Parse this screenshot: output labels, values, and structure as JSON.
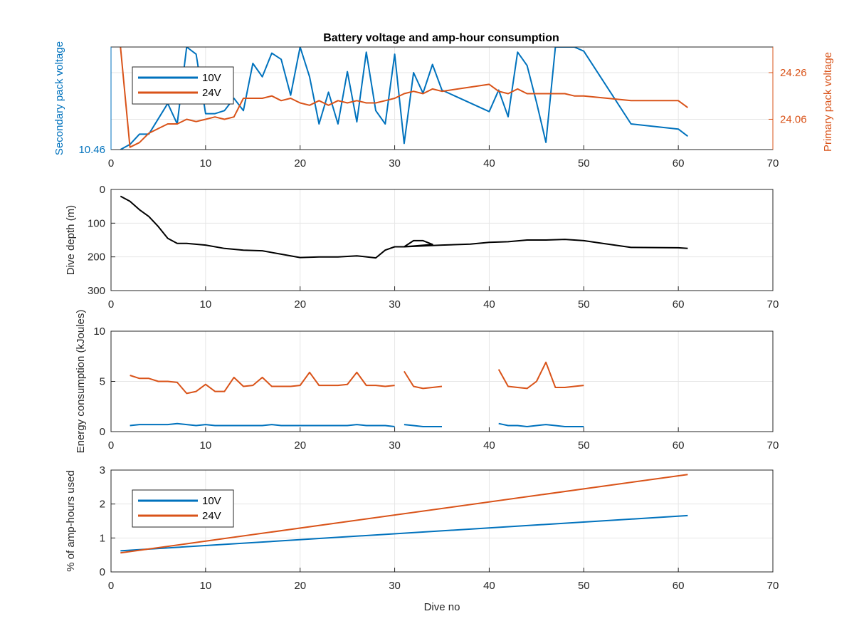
{
  "figure": {
    "title": "Battery voltage and amp-hour consumption",
    "colors": {
      "blue": "#0072bd",
      "orange": "#d95319",
      "black": "#000000",
      "grid": "#e6e6e6",
      "axis": "#262626"
    }
  },
  "chart_data": [
    {
      "type": "line",
      "title": "Battery voltage and amp-hour consumption",
      "xlabel": "",
      "ylabel": "Secondary pack voltage",
      "ylabel_right": "Primary pack voltage",
      "xlim": [
        0,
        70
      ],
      "xticks": [
        0,
        10,
        20,
        30,
        40,
        50,
        60,
        70
      ],
      "ylim": [
        10.46,
        10.56
      ],
      "yticks": [
        10.46
      ],
      "ytick_labels": [
        "10.46"
      ],
      "ylim_right": [
        23.93,
        24.37
      ],
      "yticks_right": [
        24.06,
        24.26
      ],
      "ytick_labels_right": [
        "24.06",
        "24.26"
      ],
      "grid": true,
      "legend": "top-left",
      "series": [
        {
          "name": "10V",
          "axis": "left",
          "x": [
            1,
            2,
            3,
            4,
            5,
            6,
            7,
            8,
            9,
            10,
            11,
            12,
            13,
            14,
            15,
            16,
            17,
            18,
            19,
            20,
            21,
            22,
            23,
            24,
            25,
            26,
            27,
            28,
            29,
            30,
            31,
            32,
            33,
            34,
            35,
            40,
            41,
            42,
            43,
            44,
            45,
            46,
            47,
            48,
            49,
            50,
            55,
            60,
            61
          ],
          "values": [
            10.46,
            10.465,
            10.475,
            10.475,
            10.49,
            10.505,
            10.485,
            10.56,
            10.553,
            10.495,
            10.495,
            10.498,
            10.51,
            10.498,
            10.544,
            10.531,
            10.554,
            10.548,
            10.513,
            10.56,
            10.531,
            10.485,
            10.516,
            10.485,
            10.536,
            10.487,
            10.555,
            10.498,
            10.485,
            10.553,
            10.466,
            10.535,
            10.515,
            10.543,
            10.518,
            10.497,
            10.518,
            10.492,
            10.555,
            10.542,
            10.506,
            10.467,
            10.56,
            10.56,
            10.56,
            10.556,
            10.485,
            10.48,
            10.473
          ]
        },
        {
          "name": "24V",
          "axis": "right",
          "x": [
            1,
            2,
            3,
            4,
            5,
            6,
            7,
            8,
            9,
            10,
            11,
            12,
            13,
            14,
            15,
            16,
            17,
            18,
            19,
            20,
            21,
            22,
            23,
            24,
            25,
            26,
            27,
            28,
            29,
            30,
            31,
            32,
            33,
            34,
            35,
            40,
            41,
            42,
            43,
            44,
            45,
            46,
            47,
            48,
            49,
            50,
            55,
            60,
            61
          ],
          "values": [
            24.37,
            23.94,
            23.96,
            24.0,
            24.02,
            24.04,
            24.04,
            24.06,
            24.05,
            24.06,
            24.07,
            24.06,
            24.07,
            24.15,
            24.15,
            24.15,
            24.16,
            24.14,
            24.15,
            24.13,
            24.12,
            24.14,
            24.12,
            24.14,
            24.13,
            24.14,
            24.13,
            24.13,
            24.14,
            24.15,
            24.17,
            24.18,
            24.17,
            24.19,
            24.18,
            24.21,
            24.18,
            24.17,
            24.19,
            24.17,
            24.17,
            24.17,
            24.17,
            24.17,
            24.16,
            24.16,
            24.14,
            24.14,
            24.11
          ]
        }
      ]
    },
    {
      "type": "line",
      "xlabel": "",
      "ylabel": "Dive depth (m)",
      "xlim": [
        0,
        70
      ],
      "xticks": [
        0,
        10,
        20,
        30,
        40,
        50,
        60,
        70
      ],
      "ylim": [
        0,
        300
      ],
      "yreverse": true,
      "yticks": [
        0,
        100,
        200,
        300
      ],
      "grid": true,
      "series": [
        {
          "name": "",
          "x": [
            1,
            2,
            3,
            4,
            5,
            6,
            7,
            8,
            10,
            12,
            14,
            16,
            18,
            20,
            22,
            24,
            26,
            28,
            29,
            30,
            31,
            32,
            33,
            34,
            31,
            35,
            38,
            40,
            42,
            44,
            46,
            48,
            50,
            52,
            55,
            60,
            61
          ],
          "values": [
            20,
            35,
            60,
            80,
            110,
            145,
            160,
            160,
            165,
            175,
            180,
            182,
            192,
            202,
            200,
            200,
            197,
            203,
            180,
            170,
            170,
            152,
            152,
            163,
            170,
            165,
            162,
            157,
            155,
            150,
            150,
            148,
            152,
            160,
            172,
            173,
            175
          ]
        }
      ]
    },
    {
      "type": "line",
      "xlabel": "",
      "ylabel": "Energy consumption (kJoules)",
      "xlim": [
        0,
        70
      ],
      "xticks": [
        0,
        10,
        20,
        30,
        40,
        50,
        60,
        70
      ],
      "ylim": [
        0,
        10
      ],
      "yticks": [
        0,
        5,
        10
      ],
      "grid": true,
      "series": [
        {
          "name": "",
          "color": "orange",
          "x": [
            2,
            3,
            4,
            5,
            6,
            7,
            8,
            9,
            10,
            11,
            12,
            13,
            14,
            15,
            16,
            17,
            18,
            19,
            20,
            21,
            22,
            23,
            24,
            25,
            26,
            27,
            28,
            29,
            30,
            null,
            31,
            32,
            33,
            34,
            35,
            null,
            41,
            42,
            43,
            44,
            45,
            46,
            47,
            48,
            49,
            50
          ],
          "values": [
            5.6,
            5.3,
            5.3,
            5.0,
            5.0,
            4.9,
            3.8,
            4.0,
            4.7,
            4.0,
            4.0,
            5.4,
            4.5,
            4.6,
            5.4,
            4.5,
            4.5,
            4.5,
            4.6,
            5.9,
            4.6,
            4.6,
            4.6,
            4.7,
            5.9,
            4.6,
            4.6,
            4.5,
            4.6,
            null,
            6.0,
            4.5,
            4.3,
            4.4,
            4.5,
            null,
            6.2,
            4.5,
            4.4,
            4.3,
            5.0,
            6.9,
            4.4,
            4.4,
            4.5,
            4.6
          ]
        },
        {
          "name": "",
          "color": "blue",
          "x": [
            2,
            3,
            4,
            5,
            6,
            7,
            8,
            9,
            10,
            11,
            12,
            13,
            14,
            15,
            16,
            17,
            18,
            19,
            20,
            21,
            22,
            23,
            24,
            25,
            26,
            27,
            28,
            29,
            30,
            null,
            31,
            32,
            33,
            34,
            35,
            null,
            41,
            42,
            43,
            44,
            45,
            46,
            47,
            48,
            49,
            50
          ],
          "values": [
            0.6,
            0.7,
            0.7,
            0.7,
            0.7,
            0.8,
            0.7,
            0.6,
            0.7,
            0.6,
            0.6,
            0.6,
            0.6,
            0.6,
            0.6,
            0.7,
            0.6,
            0.6,
            0.6,
            0.6,
            0.6,
            0.6,
            0.6,
            0.6,
            0.7,
            0.6,
            0.6,
            0.6,
            0.5,
            null,
            0.7,
            0.6,
            0.5,
            0.5,
            0.5,
            null,
            0.8,
            0.6,
            0.6,
            0.5,
            0.6,
            0.7,
            0.6,
            0.5,
            0.5,
            0.5
          ]
        }
      ]
    },
    {
      "type": "line",
      "xlabel": "Dive no",
      "ylabel": "% of amp-hours used",
      "xlim": [
        0,
        70
      ],
      "xticks": [
        0,
        10,
        20,
        30,
        40,
        50,
        60,
        70
      ],
      "ylim": [
        0,
        3
      ],
      "yticks": [
        0,
        1,
        2,
        3
      ],
      "grid": true,
      "legend": "top-left",
      "series": [
        {
          "name": "10V",
          "x": [
            1,
            61
          ],
          "values": [
            0.62,
            1.66
          ]
        },
        {
          "name": "24V",
          "x": [
            1,
            61
          ],
          "values": [
            0.56,
            2.87
          ]
        }
      ]
    }
  ]
}
